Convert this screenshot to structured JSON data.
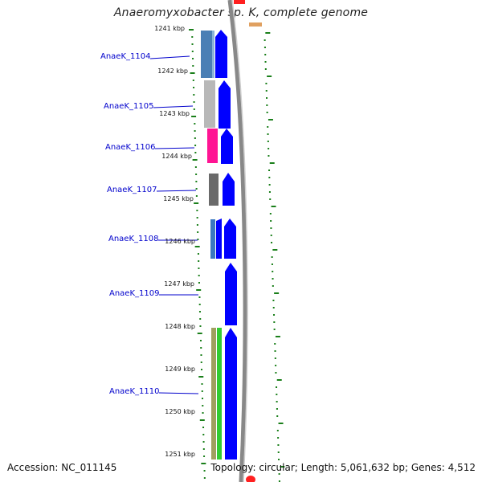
{
  "title": "Anaeromyxobacter sp. K, complete genome",
  "footer": {
    "accession": "Accession: NC_011145",
    "topology": "Topology: circular; Length: 5,061,632 bp; Genes: 4,512"
  },
  "kbp_ticks": [
    "1241 kbp",
    "1242 kbp",
    "1243 kbp",
    "1244 kbp",
    "1245 kbp",
    "1246 kbp",
    "1247 kbp",
    "1248 kbp",
    "1249 kbp",
    "1250 kbp",
    "1251 kbp"
  ],
  "genes": [
    {
      "label": "AnaeK_1104",
      "color": "#4a7fb5"
    },
    {
      "label": "AnaeK_1105",
      "color": "#b8b8b8"
    },
    {
      "label": "AnaeK_1106",
      "color": "#ff1493"
    },
    {
      "label": "AnaeK_1107",
      "color": "#707070"
    },
    {
      "label": "AnaeK_1108",
      "color": "#3a78c0"
    },
    {
      "label": "AnaeK_1109",
      "color": "#0000ff"
    },
    {
      "label": "AnaeK_1110",
      "color": "#a0a060"
    }
  ],
  "colors": {
    "strand_arrow": "#0000ff",
    "tick_dots": "#1a7f1a",
    "backbone": "#888888",
    "label_text": "#0000cc",
    "gene_1110_inner": "#33cc33"
  }
}
